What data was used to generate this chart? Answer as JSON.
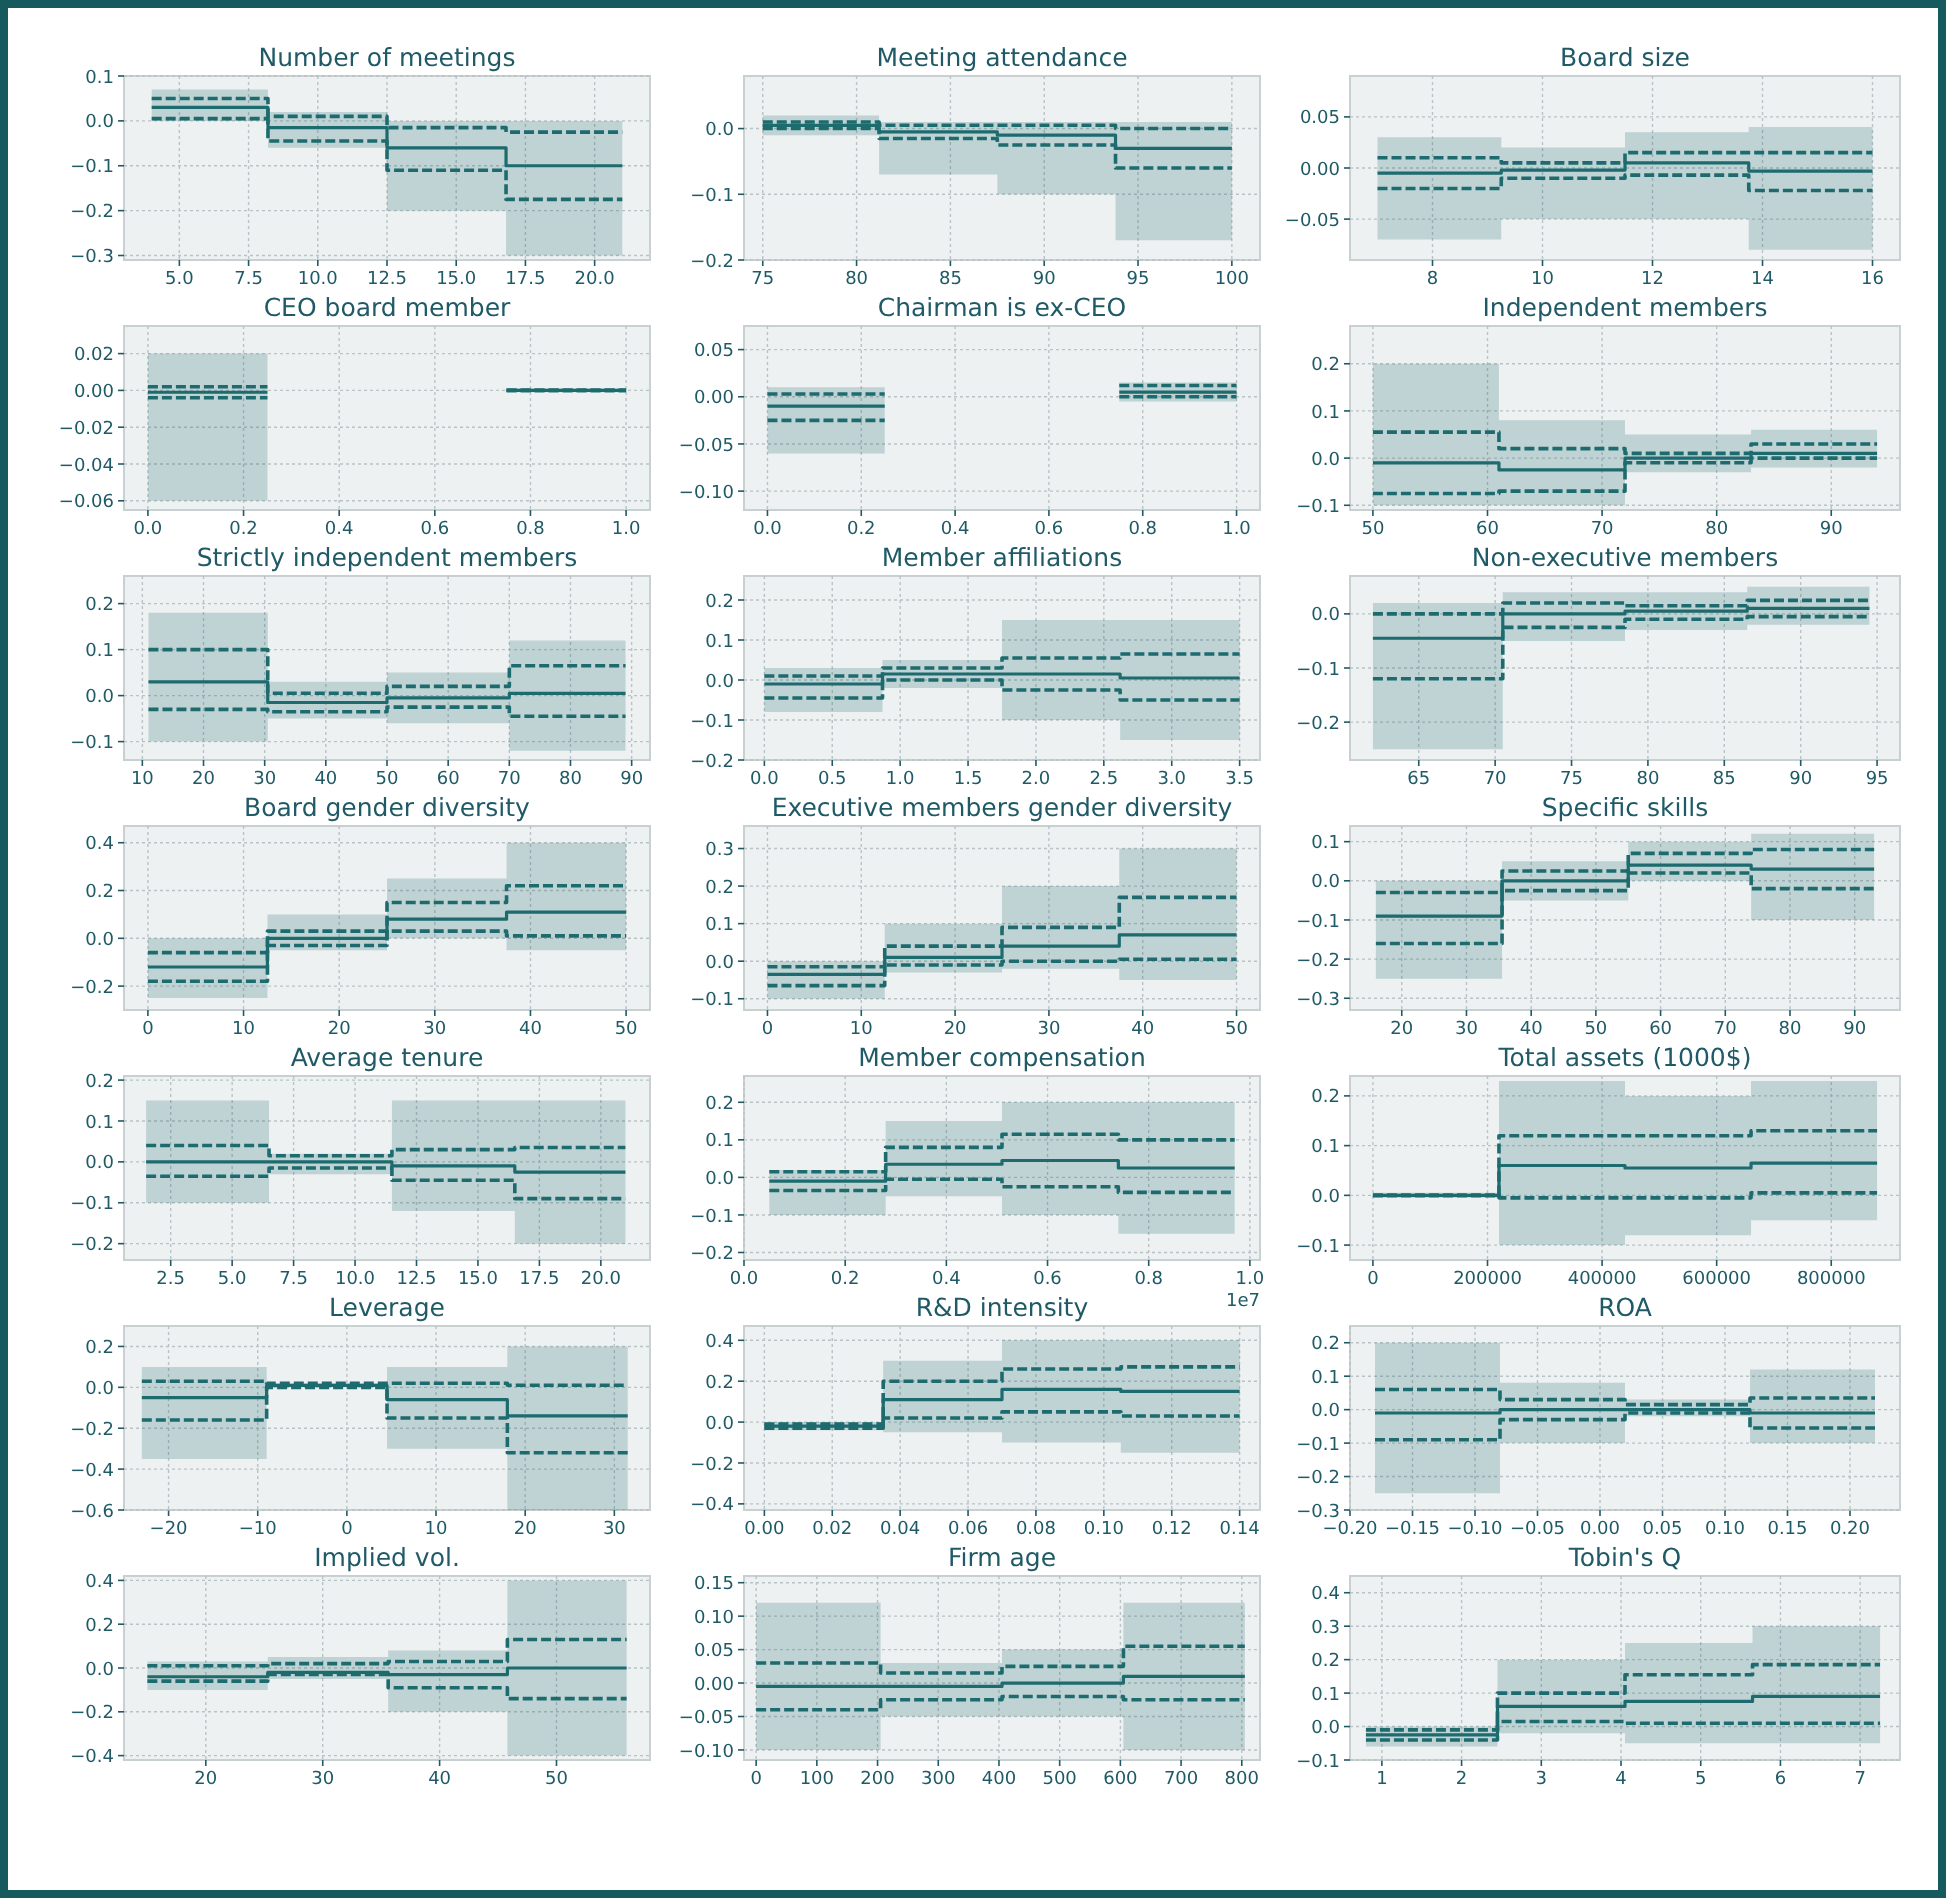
{
  "chart_data": [
    {
      "type": "step",
      "title": "Number of meetings",
      "x": [
        4,
        8.2,
        12.5,
        16.8,
        21
      ],
      "xlim": [
        3,
        22
      ],
      "xticks": [
        {
          "value": 5,
          "label": "5.0"
        },
        7.5,
        {
          "value": 10,
          "label": "10.0"
        },
        12.5,
        {
          "value": 15,
          "label": "15.0"
        },
        17.5,
        {
          "value": 20,
          "label": "20.0"
        }
      ],
      "ylim": [
        -0.31,
        0.1
      ],
      "yticks": [
        {
          "value": -0.3,
          "label": "−0.3"
        },
        {
          "value": -0.2,
          "label": "−0.2"
        },
        {
          "value": -0.1,
          "label": "−0.1"
        },
        {
          "value": 0,
          "label": "0.0"
        },
        0.1
      ],
      "grid": true,
      "series": [
        {
          "color": "#1d6b6e",
          "values": [
            0.03,
            -0.015,
            -0.06,
            -0.1,
            -0.1
          ],
          "lower": [
            0,
            -0.06,
            -0.2,
            -0.3,
            -0.3
          ],
          "upper": [
            0.07,
            0.02,
            0,
            0,
            0
          ]
        },
        {
          "color": "#1d6b6e",
          "values": [
            0.05,
            0.01,
            -0.015,
            -0.025,
            -0.025
          ],
          "line_style": "dashed"
        },
        {
          "color": "#1d6b6e",
          "values": [
            0.005,
            -0.045,
            -0.11,
            -0.175,
            -0.175
          ],
          "line_style": "dashed"
        }
      ]
    },
    {
      "type": "step",
      "title": "Meeting attendance",
      "x": [
        75,
        81.2,
        87.5,
        93.8,
        100
      ],
      "xlim": [
        74,
        101.5
      ],
      "xticks": [
        75,
        80,
        85,
        90,
        95,
        100
      ],
      "ylim": [
        -0.2,
        0.08
      ],
      "yticks": [
        {
          "value": -0.2,
          "label": "−0.2"
        },
        {
          "value": -0.1,
          "label": "−0.1"
        },
        {
          "value": 0,
          "label": "0.0"
        }
      ],
      "grid": true,
      "series": [
        {
          "color": "#1d6b6e",
          "values": [
            0.005,
            -0.005,
            -0.01,
            -0.03,
            -0.03
          ],
          "lower": [
            -0.01,
            -0.07,
            -0.1,
            -0.17,
            -0.17
          ],
          "upper": [
            0.02,
            0.01,
            0.01,
            0.01,
            0.01
          ]
        },
        {
          "color": "#1d6b6e",
          "values": [
            0.01,
            0.005,
            0.005,
            0,
            0
          ],
          "line_style": "dashed"
        },
        {
          "color": "#1d6b6e",
          "values": [
            0,
            -0.015,
            -0.025,
            -0.06,
            -0.06
          ],
          "line_style": "dashed"
        }
      ]
    },
    {
      "type": "step",
      "title": "Board size",
      "x": [
        7,
        9.25,
        11.5,
        13.75,
        16
      ],
      "xlim": [
        6.5,
        16.5
      ],
      "xticks": [
        8,
        10,
        12,
        14,
        16
      ],
      "ylim": [
        -0.09,
        0.09
      ],
      "yticks": [
        {
          "value": -0.05,
          "label": "−0.05"
        },
        {
          "value": 0,
          "label": "0.00"
        },
        0.05
      ],
      "grid": true,
      "series": [
        {
          "color": "#1d6b6e",
          "values": [
            -0.005,
            -0.002,
            0.005,
            -0.003,
            -0.003
          ],
          "lower": [
            -0.07,
            -0.05,
            -0.05,
            -0.08,
            -0.08
          ],
          "upper": [
            0.03,
            0.02,
            0.035,
            0.04,
            0.04
          ]
        },
        {
          "color": "#1d6b6e",
          "values": [
            0.01,
            0.005,
            0.015,
            0.015,
            0.015
          ],
          "line_style": "dashed"
        },
        {
          "color": "#1d6b6e",
          "values": [
            -0.02,
            -0.01,
            -0.007,
            -0.022,
            -0.022
          ],
          "line_style": "dashed"
        }
      ]
    },
    {
      "type": "step",
      "title": "CEO board member",
      "x": [
        0,
        0.25,
        0.75,
        1
      ],
      "xlim": [
        -0.05,
        1.05
      ],
      "xticks": [
        {
          "value": 0,
          "label": "0.0"
        },
        0.2,
        0.4,
        0.6,
        0.8,
        {
          "value": 1,
          "label": "1.0"
        }
      ],
      "ylim": [
        -0.065,
        0.035
      ],
      "yticks": [
        {
          "value": -0.06,
          "label": "−0.06"
        },
        {
          "value": -0.04,
          "label": "−0.04"
        },
        {
          "value": -0.02,
          "label": "−0.02"
        },
        {
          "value": 0,
          "label": "0.00"
        },
        0.02
      ],
      "grid": true,
      "series": [
        {
          "color": "#1d6b6e",
          "values": [
            -0.001,
            null,
            0,
            0
          ],
          "lower": [
            -0.06,
            null,
            -0.001,
            -0.001
          ],
          "upper": [
            0.02,
            null,
            0.001,
            0.001
          ]
        },
        {
          "color": "#1d6b6e",
          "values": [
            0.002,
            null,
            0,
            0
          ],
          "line_style": "dashed"
        },
        {
          "color": "#1d6b6e",
          "values": [
            -0.004,
            null,
            0,
            0
          ],
          "line_style": "dashed"
        }
      ]
    },
    {
      "type": "step",
      "title": "Chairman is ex-CEO",
      "x": [
        0,
        0.25,
        0.75,
        1
      ],
      "xlim": [
        -0.05,
        1.05
      ],
      "xticks": [
        {
          "value": 0,
          "label": "0.0"
        },
        0.2,
        0.4,
        0.6,
        0.8,
        {
          "value": 1,
          "label": "1.0"
        }
      ],
      "ylim": [
        -0.12,
        0.075
      ],
      "yticks": [
        {
          "value": -0.1,
          "label": "−0.10"
        },
        {
          "value": -0.05,
          "label": "−0.05"
        },
        {
          "value": 0,
          "label": "0.00"
        },
        0.05
      ],
      "grid": true,
      "series": [
        {
          "color": "#1d6b6e",
          "values": [
            -0.01,
            null,
            0.005,
            0.005
          ],
          "lower": [
            -0.06,
            null,
            -0.005,
            -0.005
          ],
          "upper": [
            0.01,
            null,
            0.015,
            0.015
          ]
        },
        {
          "color": "#1d6b6e",
          "values": [
            0.003,
            null,
            0.012,
            0.012
          ],
          "line_style": "dashed"
        },
        {
          "color": "#1d6b6e",
          "values": [
            -0.025,
            null,
            0,
            0
          ],
          "line_style": "dashed"
        }
      ]
    },
    {
      "type": "step",
      "title": "Independent members",
      "x": [
        50,
        61,
        72,
        83,
        94
      ],
      "xlim": [
        48,
        96
      ],
      "xticks": [
        50,
        60,
        70,
        80,
        90
      ],
      "ylim": [
        -0.11,
        0.28
      ],
      "yticks": [
        {
          "value": -0.1,
          "label": "−0.1"
        },
        {
          "value": 0,
          "label": "0.0"
        },
        0.1,
        0.2
      ],
      "grid": true,
      "series": [
        {
          "color": "#1d6b6e",
          "values": [
            -0.01,
            -0.025,
            0,
            0.01,
            0.01
          ],
          "lower": [
            -0.1,
            -0.1,
            -0.03,
            -0.02,
            -0.02
          ],
          "upper": [
            0.2,
            0.08,
            0.05,
            0.06,
            0.06
          ]
        },
        {
          "color": "#1d6b6e",
          "values": [
            0.055,
            0.02,
            0.01,
            0.03,
            0.03
          ],
          "line_style": "dashed"
        },
        {
          "color": "#1d6b6e",
          "values": [
            -0.075,
            -0.07,
            -0.01,
            0,
            0
          ],
          "line_style": "dashed"
        }
      ]
    },
    {
      "type": "step",
      "title": "Strictly independent members",
      "x": [
        11,
        30.5,
        50,
        70,
        89
      ],
      "xlim": [
        7,
        93
      ],
      "xticks": [
        10,
        20,
        30,
        40,
        50,
        60,
        70,
        80,
        90
      ],
      "ylim": [
        -0.14,
        0.26
      ],
      "yticks": [
        {
          "value": -0.1,
          "label": "−0.1"
        },
        {
          "value": 0,
          "label": "0.0"
        },
        0.1,
        0.2
      ],
      "grid": true,
      "series": [
        {
          "color": "#1d6b6e",
          "values": [
            0.03,
            -0.015,
            -0.005,
            0.005,
            0.005
          ],
          "lower": [
            -0.1,
            -0.05,
            -0.06,
            -0.12,
            -0.12
          ],
          "upper": [
            0.18,
            0.03,
            0.05,
            0.12,
            0.12
          ]
        },
        {
          "color": "#1d6b6e",
          "values": [
            0.1,
            0.005,
            0.02,
            0.065,
            0.065
          ],
          "line_style": "dashed"
        },
        {
          "color": "#1d6b6e",
          "values": [
            -0.03,
            -0.035,
            -0.025,
            -0.045,
            -0.045
          ],
          "line_style": "dashed"
        }
      ]
    },
    {
      "type": "step",
      "title": "Member affiliations",
      "x": [
        0,
        0.87,
        1.75,
        2.62,
        3.5
      ],
      "xlim": [
        -0.15,
        3.65
      ],
      "xticks": [
        {
          "value": 0,
          "label": "0.0"
        },
        0.5,
        {
          "value": 1,
          "label": "1.0"
        },
        1.5,
        {
          "value": 2,
          "label": "2.0"
        },
        2.5,
        {
          "value": 3,
          "label": "3.0"
        },
        3.5
      ],
      "ylim": [
        -0.2,
        0.26
      ],
      "yticks": [
        {
          "value": -0.2,
          "label": "−0.2"
        },
        {
          "value": -0.1,
          "label": "−0.1"
        },
        {
          "value": 0,
          "label": "0.0"
        },
        0.1,
        0.2
      ],
      "grid": true,
      "series": [
        {
          "color": "#1d6b6e",
          "values": [
            -0.01,
            0.015,
            0.015,
            0.005,
            0.005
          ],
          "lower": [
            -0.08,
            -0.02,
            -0.1,
            -0.15,
            -0.15
          ],
          "upper": [
            0.03,
            0.05,
            0.15,
            0.15,
            0.15
          ]
        },
        {
          "color": "#1d6b6e",
          "values": [
            0.01,
            0.03,
            0.055,
            0.065,
            0.065
          ],
          "line_style": "dashed"
        },
        {
          "color": "#1d6b6e",
          "values": [
            -0.045,
            0,
            -0.025,
            -0.05,
            -0.05
          ],
          "line_style": "dashed"
        }
      ]
    },
    {
      "type": "step",
      "title": "Non-executive members",
      "x": [
        62,
        70.5,
        78.5,
        86.5,
        94.5
      ],
      "xlim": [
        60.5,
        96.5
      ],
      "xticks": [
        65,
        70,
        75,
        80,
        85,
        90,
        95
      ],
      "ylim": [
        -0.27,
        0.07
      ],
      "yticks": [
        {
          "value": -0.2,
          "label": "−0.2"
        },
        {
          "value": -0.1,
          "label": "−0.1"
        },
        {
          "value": 0,
          "label": "0.0"
        }
      ],
      "grid": true,
      "series": [
        {
          "color": "#1d6b6e",
          "values": [
            -0.045,
            0,
            0.005,
            0.01,
            0.01
          ],
          "lower": [
            -0.25,
            -0.05,
            -0.03,
            -0.02,
            -0.02
          ],
          "upper": [
            0.02,
            0.04,
            0.04,
            0.05,
            0.05
          ]
        },
        {
          "color": "#1d6b6e",
          "values": [
            0,
            0.02,
            0.015,
            0.025,
            0.025
          ],
          "line_style": "dashed"
        },
        {
          "color": "#1d6b6e",
          "values": [
            -0.12,
            -0.025,
            -0.01,
            -0.005,
            -0.005
          ],
          "line_style": "dashed"
        }
      ]
    },
    {
      "type": "step",
      "title": "Board gender diversity",
      "x": [
        0,
        12.5,
        25,
        37.5,
        50
      ],
      "xlim": [
        -2.5,
        52.5
      ],
      "xticks": [
        0,
        10,
        20,
        30,
        40,
        50
      ],
      "ylim": [
        -0.3,
        0.47
      ],
      "yticks": [
        {
          "value": -0.2,
          "label": "−0.2"
        },
        {
          "value": 0,
          "label": "0.0"
        },
        0.2,
        0.4
      ],
      "grid": true,
      "series": [
        {
          "color": "#1d6b6e",
          "values": [
            -0.12,
            0,
            0.08,
            0.11,
            0.11
          ],
          "lower": [
            -0.25,
            -0.05,
            0,
            -0.05,
            -0.05
          ],
          "upper": [
            0,
            0.1,
            0.25,
            0.4,
            0.4
          ]
        },
        {
          "color": "#1d6b6e",
          "values": [
            -0.06,
            0.03,
            0.15,
            0.22,
            0.22
          ],
          "line_style": "dashed"
        },
        {
          "color": "#1d6b6e",
          "values": [
            -0.18,
            -0.03,
            0.03,
            0.01,
            0.01
          ],
          "line_style": "dashed"
        }
      ]
    },
    {
      "type": "step",
      "title": "Executive members gender diversity",
      "x": [
        0,
        12.5,
        25,
        37.5,
        50
      ],
      "xlim": [
        -2.5,
        52.5
      ],
      "xticks": [
        0,
        10,
        20,
        30,
        40,
        50
      ],
      "ylim": [
        -0.13,
        0.36
      ],
      "yticks": [
        {
          "value": -0.1,
          "label": "−0.1"
        },
        {
          "value": 0,
          "label": "0.0"
        },
        0.1,
        0.2,
        0.3
      ],
      "grid": true,
      "series": [
        {
          "color": "#1d6b6e",
          "values": [
            -0.035,
            0.01,
            0.04,
            0.07,
            0.07
          ],
          "lower": [
            -0.1,
            -0.03,
            -0.02,
            -0.05,
            -0.05
          ],
          "upper": [
            0,
            0.1,
            0.2,
            0.3,
            0.3
          ]
        },
        {
          "color": "#1d6b6e",
          "values": [
            -0.015,
            0.04,
            0.09,
            0.17,
            0.17
          ],
          "line_style": "dashed"
        },
        {
          "color": "#1d6b6e",
          "values": [
            -0.065,
            -0.01,
            0,
            0.005,
            0.005
          ],
          "line_style": "dashed"
        }
      ]
    },
    {
      "type": "step",
      "title": "Specific skills",
      "x": [
        16,
        35.5,
        55,
        74,
        93
      ],
      "xlim": [
        12,
        97
      ],
      "xticks": [
        20,
        30,
        40,
        50,
        60,
        70,
        80,
        90
      ],
      "ylim": [
        -0.33,
        0.14
      ],
      "yticks": [
        {
          "value": -0.3,
          "label": "−0.3"
        },
        {
          "value": -0.2,
          "label": "−0.2"
        },
        {
          "value": -0.1,
          "label": "−0.1"
        },
        {
          "value": 0,
          "label": "0.0"
        },
        0.1
      ],
      "grid": true,
      "series": [
        {
          "color": "#1d6b6e",
          "values": [
            -0.09,
            0,
            0.04,
            0.03,
            0.03
          ],
          "lower": [
            -0.25,
            -0.05,
            0,
            -0.1,
            -0.1
          ],
          "upper": [
            0,
            0.05,
            0.1,
            0.12,
            0.12
          ]
        },
        {
          "color": "#1d6b6e",
          "values": [
            -0.03,
            0.025,
            0.07,
            0.08,
            0.08
          ],
          "line_style": "dashed"
        },
        {
          "color": "#1d6b6e",
          "values": [
            -0.16,
            -0.025,
            0.02,
            -0.02,
            -0.02
          ],
          "line_style": "dashed"
        }
      ]
    },
    {
      "type": "step",
      "title": "Average tenure",
      "x": [
        1.5,
        6.5,
        11.5,
        16.5,
        21
      ],
      "xlim": [
        0.6,
        22
      ],
      "xticks": [
        2.5,
        {
          "value": 5,
          "label": "5.0"
        },
        7.5,
        {
          "value": 10,
          "label": "10.0"
        },
        12.5,
        {
          "value": 15,
          "label": "15.0"
        },
        17.5,
        {
          "value": 20,
          "label": "20.0"
        }
      ],
      "ylim": [
        -0.24,
        0.21
      ],
      "yticks": [
        {
          "value": -0.2,
          "label": "−0.2"
        },
        {
          "value": -0.1,
          "label": "−0.1"
        },
        {
          "value": 0,
          "label": "0.0"
        },
        0.1,
        0.2
      ],
      "grid": true,
      "series": [
        {
          "color": "#1d6b6e",
          "values": [
            0,
            0,
            -0.01,
            -0.025,
            -0.025
          ],
          "lower": [
            -0.1,
            -0.03,
            -0.12,
            -0.2,
            -0.2
          ],
          "upper": [
            0.15,
            0.02,
            0.15,
            0.15,
            0.15
          ]
        },
        {
          "color": "#1d6b6e",
          "values": [
            0.04,
            0.015,
            0.03,
            0.035,
            0.035
          ],
          "line_style": "dashed"
        },
        {
          "color": "#1d6b6e",
          "values": [
            -0.035,
            -0.015,
            -0.045,
            -0.09,
            -0.09
          ],
          "line_style": "dashed"
        }
      ]
    },
    {
      "type": "step",
      "title": "Member compensation",
      "annotations": [
        "1e7"
      ],
      "x": [
        0.05,
        0.28,
        0.51,
        0.74,
        0.97
      ],
      "xlim": [
        0,
        1.02
      ],
      "xticks": [
        {
          "value": 0,
          "label": "0.0"
        },
        0.2,
        0.4,
        0.6,
        0.8,
        {
          "value": 1,
          "label": "1.0"
        }
      ],
      "ylim": [
        -0.22,
        0.27
      ],
      "yticks": [
        {
          "value": -0.2,
          "label": "−0.2"
        },
        {
          "value": -0.1,
          "label": "−0.1"
        },
        {
          "value": 0,
          "label": "0.0"
        },
        0.1,
        0.2
      ],
      "grid": true,
      "series": [
        {
          "color": "#1d6b6e",
          "values": [
            -0.01,
            0.035,
            0.045,
            0.025,
            0.025
          ],
          "lower": [
            -0.1,
            -0.05,
            -0.1,
            -0.15,
            -0.15
          ],
          "upper": [
            0.02,
            0.15,
            0.2,
            0.2,
            0.2
          ]
        },
        {
          "color": "#1d6b6e",
          "values": [
            0.015,
            0.08,
            0.115,
            0.1,
            0.1
          ],
          "line_style": "dashed"
        },
        {
          "color": "#1d6b6e",
          "values": [
            -0.035,
            -0.005,
            -0.025,
            -0.04,
            -0.04
          ],
          "line_style": "dashed"
        }
      ]
    },
    {
      "type": "step",
      "title": "Total assets (1000$)",
      "x": [
        0,
        220000,
        440000,
        660000,
        880000
      ],
      "xlim": [
        -40000,
        920000
      ],
      "xticks": [
        0,
        200000,
        400000,
        600000,
        800000
      ],
      "ylim": [
        -0.13,
        0.24
      ],
      "yticks": [
        {
          "value": -0.1,
          "label": "−0.1"
        },
        {
          "value": 0,
          "label": "0.0"
        },
        0.1,
        0.2
      ],
      "grid": true,
      "series": [
        {
          "color": "#1d6b6e",
          "values": [
            0,
            0.06,
            0.055,
            0.065,
            0.065
          ],
          "lower": [
            -0.005,
            -0.1,
            -0.08,
            -0.05,
            -0.05
          ],
          "upper": [
            0.005,
            0.23,
            0.2,
            0.23,
            0.23
          ]
        },
        {
          "color": "#1d6b6e",
          "values": [
            0,
            0.12,
            0.12,
            0.13,
            0.13
          ],
          "line_style": "dashed"
        },
        {
          "color": "#1d6b6e",
          "values": [
            0,
            -0.005,
            -0.005,
            0.005,
            0.005
          ],
          "line_style": "dashed"
        }
      ]
    },
    {
      "type": "step",
      "title": "Leverage",
      "x": [
        -23,
        -9,
        4.5,
        18,
        31.5
      ],
      "xlim": [
        -25,
        34
      ],
      "xticks": [
        {
          "value": -20,
          "label": "−20"
        },
        {
          "value": -10,
          "label": "−10"
        },
        0,
        10,
        20,
        30
      ],
      "ylim": [
        -0.6,
        0.3
      ],
      "yticks": [
        {
          "value": -0.6,
          "label": "−0.6"
        },
        {
          "value": -0.4,
          "label": "−0.4"
        },
        {
          "value": -0.2,
          "label": "−0.2"
        },
        {
          "value": 0,
          "label": "0.0"
        },
        0.2
      ],
      "grid": true,
      "series": [
        {
          "color": "#1d6b6e",
          "values": [
            -0.05,
            0.01,
            -0.06,
            -0.14,
            -0.14
          ],
          "lower": [
            -0.35,
            0,
            -0.3,
            -0.6,
            -0.6
          ],
          "upper": [
            0.1,
            0.02,
            0.1,
            0.2,
            0.2
          ]
        },
        {
          "color": "#1d6b6e",
          "values": [
            0.03,
            0.02,
            0.02,
            0.01,
            0.01
          ],
          "line_style": "dashed"
        },
        {
          "color": "#1d6b6e",
          "values": [
            -0.16,
            0,
            -0.15,
            -0.32,
            -0.32
          ],
          "line_style": "dashed"
        }
      ]
    },
    {
      "type": "step",
      "title": "R&D intensity",
      "x": [
        0,
        0.035,
        0.07,
        0.105,
        0.14
      ],
      "xlim": [
        -0.006,
        0.146
      ],
      "xticks": [
        {
          "value": 0,
          "label": "0.00"
        },
        0.02,
        0.04,
        0.06,
        0.08,
        {
          "value": 0.1,
          "label": "0.10"
        },
        0.12,
        0.14
      ],
      "ylim": [
        -0.43,
        0.47
      ],
      "yticks": [
        {
          "value": -0.4,
          "label": "−0.4"
        },
        {
          "value": -0.2,
          "label": "−0.2"
        },
        {
          "value": 0,
          "label": "0.0"
        },
        0.2,
        0.4
      ],
      "grid": true,
      "series": [
        {
          "color": "#1d6b6e",
          "values": [
            -0.02,
            0.11,
            0.16,
            0.15,
            0.15
          ],
          "lower": [
            -0.04,
            -0.05,
            -0.1,
            -0.15,
            -0.15
          ],
          "upper": [
            0,
            0.3,
            0.4,
            0.4,
            0.4
          ]
        },
        {
          "color": "#1d6b6e",
          "values": [
            -0.01,
            0.2,
            0.26,
            0.27,
            0.27
          ],
          "line_style": "dashed"
        },
        {
          "color": "#1d6b6e",
          "values": [
            -0.03,
            0.02,
            0.05,
            0.03,
            0.03
          ],
          "line_style": "dashed"
        }
      ]
    },
    {
      "type": "step",
      "title": "ROA",
      "x": [
        -0.18,
        -0.08,
        0.02,
        0.12,
        0.22
      ],
      "xlim": [
        -0.2,
        0.24
      ],
      "xticks": [
        {
          "value": -0.2,
          "label": "−0.20"
        },
        {
          "value": -0.15,
          "label": "−0.15"
        },
        {
          "value": -0.1,
          "label": "−0.10"
        },
        {
          "value": -0.05,
          "label": "−0.05"
        },
        {
          "value": 0,
          "label": "0.00"
        },
        0.05,
        {
          "value": 0.1,
          "label": "0.10"
        },
        0.15,
        {
          "value": 0.2,
          "label": "0.20"
        }
      ],
      "ylim": [
        -0.3,
        0.25
      ],
      "yticks": [
        {
          "value": -0.3,
          "label": "−0.3"
        },
        {
          "value": -0.2,
          "label": "−0.2"
        },
        {
          "value": -0.1,
          "label": "−0.1"
        },
        {
          "value": 0,
          "label": "0.0"
        },
        0.1,
        0.2
      ],
      "grid": true,
      "series": [
        {
          "color": "#1d6b6e",
          "values": [
            -0.01,
            0,
            0,
            -0.01,
            -0.01
          ],
          "lower": [
            -0.25,
            -0.1,
            -0.02,
            -0.1,
            -0.1
          ],
          "upper": [
            0.2,
            0.08,
            0.03,
            0.12,
            0.12
          ]
        },
        {
          "color": "#1d6b6e",
          "values": [
            0.06,
            0.03,
            0.015,
            0.035,
            0.035
          ],
          "line_style": "dashed"
        },
        {
          "color": "#1d6b6e",
          "values": [
            -0.09,
            -0.03,
            -0.01,
            -0.055,
            -0.055
          ],
          "line_style": "dashed"
        }
      ]
    },
    {
      "type": "step",
      "title": "Implied vol.",
      "x": [
        15,
        25.3,
        35.6,
        45.8,
        56
      ],
      "xlim": [
        13,
        58
      ],
      "xticks": [
        20,
        30,
        40,
        50
      ],
      "ylim": [
        -0.42,
        0.42
      ],
      "yticks": [
        {
          "value": -0.4,
          "label": "−0.4"
        },
        {
          "value": -0.2,
          "label": "−0.2"
        },
        {
          "value": 0,
          "label": "0.0"
        },
        0.2,
        0.4
      ],
      "grid": true,
      "series": [
        {
          "color": "#1d6b6e",
          "values": [
            -0.04,
            -0.02,
            -0.03,
            0,
            0
          ],
          "lower": [
            -0.1,
            -0.05,
            -0.2,
            -0.4,
            -0.4
          ],
          "upper": [
            0.03,
            0.05,
            0.08,
            0.4,
            0.4
          ]
        },
        {
          "color": "#1d6b6e",
          "values": [
            0.01,
            0.02,
            0.03,
            0.13,
            0.13
          ],
          "line_style": "dashed"
        },
        {
          "color": "#1d6b6e",
          "values": [
            -0.06,
            -0.03,
            -0.09,
            -0.14,
            -0.14
          ],
          "line_style": "dashed"
        }
      ]
    },
    {
      "type": "step",
      "title": "Firm age",
      "x": [
        0,
        205,
        405,
        605,
        805
      ],
      "xlim": [
        -20,
        830
      ],
      "xticks": [
        0,
        100,
        200,
        300,
        400,
        500,
        600,
        700,
        800
      ],
      "ylim": [
        -0.115,
        0.16
      ],
      "yticks": [
        {
          "value": -0.1,
          "label": "−0.10"
        },
        {
          "value": -0.05,
          "label": "−0.05"
        },
        {
          "value": 0,
          "label": "0.00"
        },
        0.05,
        {
          "value": 0.1,
          "label": "0.10"
        },
        0.15
      ],
      "grid": true,
      "series": [
        {
          "color": "#1d6b6e",
          "values": [
            -0.005,
            -0.005,
            0,
            0.01,
            0.01
          ],
          "lower": [
            -0.1,
            -0.05,
            -0.05,
            -0.1,
            -0.1
          ],
          "upper": [
            0.12,
            0.03,
            0.05,
            0.12,
            0.12
          ]
        },
        {
          "color": "#1d6b6e",
          "values": [
            0.03,
            0.015,
            0.025,
            0.055,
            0.055
          ],
          "line_style": "dashed"
        },
        {
          "color": "#1d6b6e",
          "values": [
            -0.04,
            -0.025,
            -0.02,
            -0.025,
            -0.025
          ],
          "line_style": "dashed"
        }
      ]
    },
    {
      "type": "step",
      "title": "Tobin's Q",
      "x": [
        0.8,
        2.45,
        4.05,
        5.65,
        7.25
      ],
      "xlim": [
        0.6,
        7.5
      ],
      "xticks": [
        1,
        2,
        3,
        4,
        5,
        6,
        7
      ],
      "ylim": [
        -0.1,
        0.45
      ],
      "yticks": [
        {
          "value": -0.1,
          "label": "−0.1"
        },
        {
          "value": 0,
          "label": "0.0"
        },
        0.1,
        0.2,
        0.3,
        0.4
      ],
      "grid": true,
      "series": [
        {
          "color": "#1d6b6e",
          "values": [
            -0.025,
            0.06,
            0.075,
            0.09,
            0.09
          ],
          "lower": [
            -0.06,
            -0.02,
            -0.05,
            -0.05,
            -0.05
          ],
          "upper": [
            0,
            0.2,
            0.25,
            0.3,
            0.3
          ]
        },
        {
          "color": "#1d6b6e",
          "values": [
            -0.01,
            0.1,
            0.155,
            0.185,
            0.185
          ],
          "line_style": "dashed"
        },
        {
          "color": "#1d6b6e",
          "values": [
            -0.04,
            0.015,
            0.01,
            0.01,
            0.01
          ],
          "line_style": "dashed"
        }
      ]
    }
  ]
}
